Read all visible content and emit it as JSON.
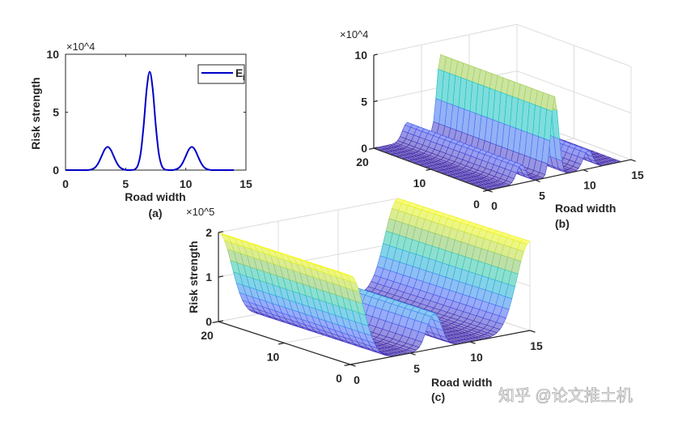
{
  "chart_data": [
    {
      "panel": "(a)",
      "type": "line",
      "xlabel": "Road width",
      "ylabel": "Risk strength",
      "y_multiplier": "×10^4",
      "xlim": [
        0,
        15
      ],
      "ylim": [
        0,
        10
      ],
      "xticks": [
        "0",
        "5",
        "10",
        "15"
      ],
      "yticks": [
        "0",
        "5",
        "10"
      ],
      "legend": {
        "label": "E",
        "subscript": "l",
        "position": "top-right"
      },
      "grid": false,
      "series": [
        {
          "name": "E_l",
          "color": "#0000c8",
          "x": {
            "start": 0,
            "stop": 14,
            "step": 0.25
          },
          "y": [
            0,
            0,
            0,
            0,
            0,
            0,
            0,
            0,
            0.02,
            0.09,
            0.27,
            0.65,
            1.21,
            1.77,
            2,
            1.77,
            1.21,
            0.65,
            0.27,
            0.09,
            0.02,
            0,
            0.01,
            0.06,
            0.37,
            1.47,
            3.89,
            7.0,
            8.5,
            7.0,
            3.89,
            1.47,
            0.37,
            0.06,
            0.01,
            0,
            0.02,
            0.09,
            0.27,
            0.65,
            1.21,
            1.77,
            2,
            1.77,
            1.21,
            0.65,
            0.27,
            0.09,
            0.02,
            0,
            0,
            0,
            0,
            0,
            0,
            0,
            0
          ]
        }
      ]
    },
    {
      "panel": "(b)",
      "type": "surface",
      "xlabel": "Road width",
      "z_multiplier": "×10^4",
      "xlim": [
        0,
        15
      ],
      "ylim": [
        0,
        20
      ],
      "zlim": [
        0,
        10
      ],
      "xticks": [
        "0",
        "5",
        "10",
        "15"
      ],
      "yticks": [
        "0",
        "10",
        "20"
      ],
      "zticks": [
        "0",
        "5",
        "10"
      ],
      "grid": true,
      "colormap": "parula",
      "x": {
        "start": 0,
        "stop": 14,
        "step": 0.25
      },
      "z_profile_constant_along_y": [
        0,
        0,
        0,
        0,
        0,
        0,
        0,
        0,
        0.02,
        0.09,
        0.27,
        0.65,
        1.21,
        1.77,
        2,
        1.77,
        1.21,
        0.65,
        0.27,
        0.09,
        0.02,
        0,
        0.01,
        0.06,
        0.37,
        1.47,
        3.89,
        7.0,
        8.5,
        7.0,
        3.89,
        1.47,
        0.37,
        0.06,
        0.01,
        0,
        0.02,
        0.09,
        0.27,
        0.65,
        1.21,
        1.77,
        2,
        1.77,
        1.21,
        0.65,
        0.27,
        0.09,
        0.02,
        0,
        0,
        0,
        0,
        0,
        0,
        0,
        0
      ]
    },
    {
      "panel": "(c)",
      "type": "surface",
      "xlabel": "Road width",
      "zlabel": "Risk strength",
      "z_multiplier": "×10^5",
      "xlim": [
        0,
        15
      ],
      "ylim": [
        0,
        20
      ],
      "zlim": [
        0,
        2
      ],
      "xticks": [
        "0",
        "5",
        "10",
        "15"
      ],
      "yticks": [
        "0",
        "10",
        "20"
      ],
      "zticks": [
        "0",
        "1",
        "2"
      ],
      "grid": true,
      "colormap": "parula",
      "x": {
        "start": 0,
        "stop": 15,
        "step": 0.25
      },
      "z_profile_constant_along_y": [
        2,
        1.95,
        1.8,
        1.59,
        1.32,
        1.05,
        0.79,
        0.56,
        0.38,
        0.25,
        0.15,
        0.09,
        0.05,
        0.03,
        0.01,
        0,
        0,
        0,
        0,
        0,
        0,
        0.01,
        0.04,
        0.09,
        0.2,
        0.37,
        0.57,
        0.73,
        0.8,
        0.73,
        0.57,
        0.37,
        0.2,
        0.09,
        0.04,
        0.01,
        0,
        0,
        0,
        0,
        0,
        0,
        0,
        0,
        0,
        0,
        0.01,
        0.03,
        0.05,
        0.09,
        0.15,
        0.25,
        0.38,
        0.56,
        0.79,
        1.05,
        1.32,
        1.59,
        1.8,
        1.95,
        2
      ]
    }
  ],
  "watermark": "知乎 @论文推土机"
}
